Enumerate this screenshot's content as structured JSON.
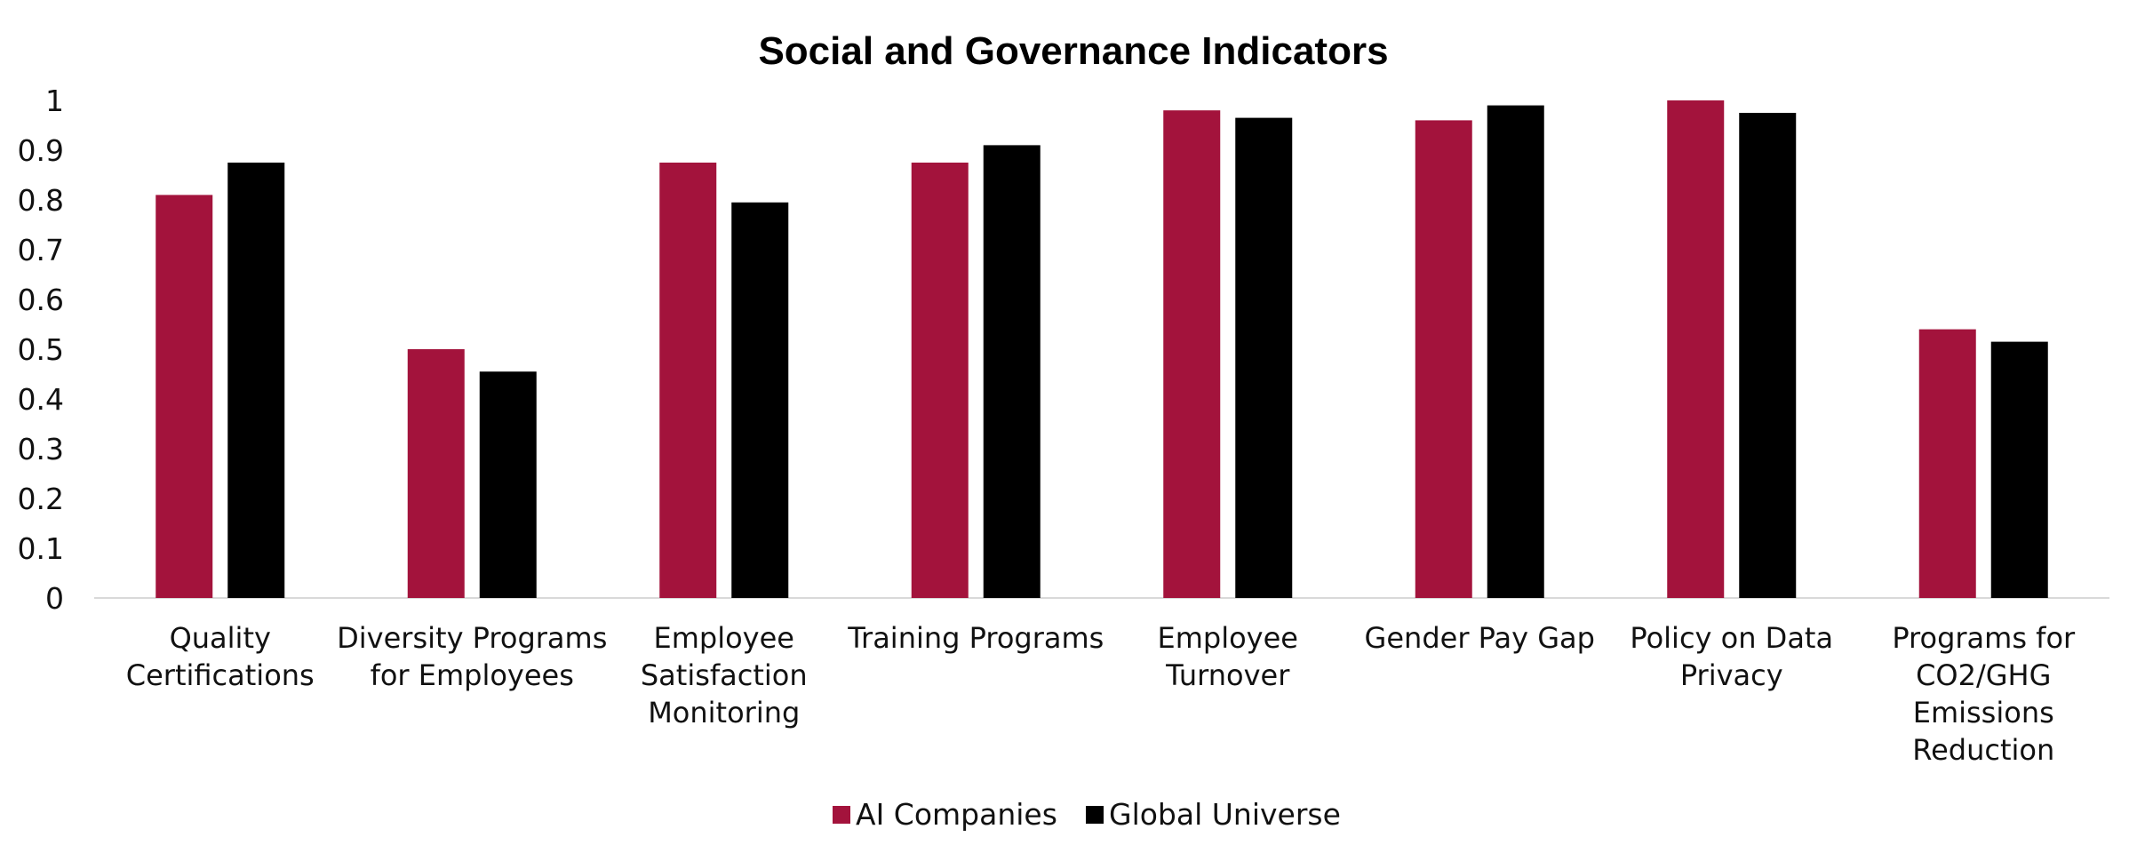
{
  "chart_data": {
    "type": "bar",
    "title": "Social and Governance Indicators",
    "xlabel": "",
    "ylabel": "",
    "ylim": [
      0,
      1
    ],
    "yticks": [
      "0",
      "0.1",
      "0.2",
      "0.3",
      "0.4",
      "0.5",
      "0.6",
      "0.7",
      "0.8",
      "0.9",
      "1"
    ],
    "categories": [
      [
        "Quality",
        "Certifications"
      ],
      [
        "Diversity Programs",
        "for Employees"
      ],
      [
        "Employee",
        "Satisfaction",
        "Monitoring"
      ],
      [
        "Training Programs"
      ],
      [
        "Employee",
        "Turnover"
      ],
      [
        "Gender Pay Gap"
      ],
      [
        "Policy on Data",
        "Privacy"
      ],
      [
        "Programs for",
        "CO2/GHG",
        "Emissions",
        "Reduction"
      ]
    ],
    "series": [
      {
        "name": "AI Companies",
        "color": "#A3133C",
        "values": [
          0.81,
          0.5,
          0.875,
          0.875,
          0.98,
          0.96,
          1.0,
          0.54
        ]
      },
      {
        "name": "Global Universe",
        "color": "#000000",
        "values": [
          0.875,
          0.455,
          0.795,
          0.91,
          0.965,
          0.99,
          0.975,
          0.515
        ]
      }
    ],
    "grid": false,
    "legend": "bottom-center"
  }
}
